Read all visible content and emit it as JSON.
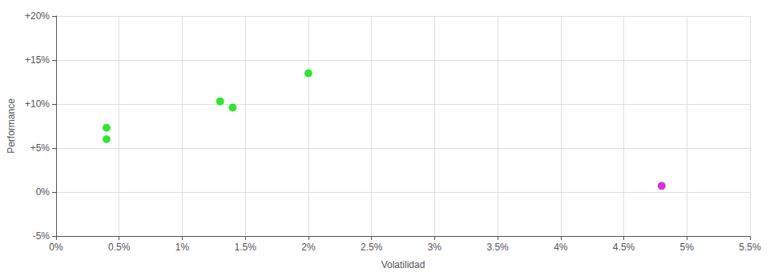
{
  "chart_data": {
    "type": "scatter",
    "xlabel": "Volatilidad",
    "ylabel": "Performance",
    "xlim": [
      0,
      0.055
    ],
    "ylim": [
      -0.05,
      0.2
    ],
    "xticks": [
      {
        "value": 0,
        "label": "0%"
      },
      {
        "value": 0.005,
        "label": "0.5%"
      },
      {
        "value": 0.01,
        "label": "1%"
      },
      {
        "value": 0.015,
        "label": "1.5%"
      },
      {
        "value": 0.02,
        "label": "2%"
      },
      {
        "value": 0.025,
        "label": "2.5%"
      },
      {
        "value": 0.03,
        "label": "3%"
      },
      {
        "value": 0.035,
        "label": "3.5%"
      },
      {
        "value": 0.04,
        "label": "4%"
      },
      {
        "value": 0.045,
        "label": "4.5%"
      },
      {
        "value": 0.05,
        "label": "5%"
      },
      {
        "value": 0.055,
        "label": "5.5%"
      }
    ],
    "yticks": [
      {
        "value": -0.05,
        "label": "-5%"
      },
      {
        "value": 0,
        "label": "0%"
      },
      {
        "value": 0.05,
        "label": "+5%"
      },
      {
        "value": 0.1,
        "label": "+10%"
      },
      {
        "value": 0.15,
        "label": "+15%"
      },
      {
        "value": 0.2,
        "label": "+20%"
      }
    ],
    "grid": true,
    "series": [
      {
        "color": "#00dd00",
        "x": [
          0.004,
          0.004,
          0.013,
          0.014,
          0.02
        ],
        "values": [
          0.073,
          0.06,
          0.103,
          0.096,
          0.135
        ]
      },
      {
        "color": "#cc00cc",
        "x": [
          0.048
        ],
        "values": [
          0.007
        ]
      }
    ]
  }
}
